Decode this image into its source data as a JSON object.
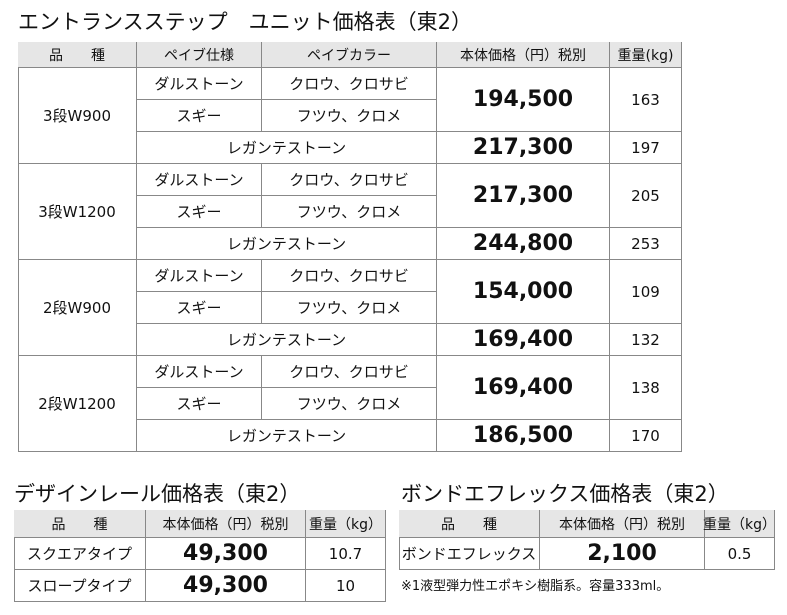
{
  "main": {
    "title": "エントランスステップ　ユニット価格表（東2）",
    "headers": [
      "品　　種",
      "ペイブ仕様",
      "ペイブカラー",
      "本体価格（円）税別",
      "重量(kg)"
    ],
    "groups": [
      {
        "name": "3段W900",
        "rows": [
          {
            "spec": "ダルストーン",
            "color": "クロウ、クロサビ"
          },
          {
            "spec": "スギー",
            "color": "フツウ、クロメ"
          }
        ],
        "price": "194,500",
        "weight": 163,
        "legante": {
          "spec": "レガンテストーン",
          "price": "217,300",
          "weight": 197
        }
      },
      {
        "name": "3段W1200",
        "rows": [
          {
            "spec": "ダルストーン",
            "color": "クロウ、クロサビ"
          },
          {
            "spec": "スギー",
            "color": "フツウ、クロメ"
          }
        ],
        "price": "217,300",
        "weight": 205,
        "legante": {
          "spec": "レガンテストーン",
          "price": "244,800",
          "weight": 253
        }
      },
      {
        "name": "2段W900",
        "rows": [
          {
            "spec": "ダルストーン",
            "color": "クロウ、クロサビ"
          },
          {
            "spec": "スギー",
            "color": "フツウ、クロメ"
          }
        ],
        "price": "154,000",
        "weight": 109,
        "legante": {
          "spec": "レガンテストーン",
          "price": "169,400",
          "weight": 132
        }
      },
      {
        "name": "2段W1200",
        "rows": [
          {
            "spec": "ダルストーン",
            "color": "クロウ、クロサビ"
          },
          {
            "spec": "スギー",
            "color": "フツウ、クロメ"
          }
        ],
        "price": "169,400",
        "weight": 138,
        "legante": {
          "spec": "レガンテストーン",
          "price": "186,500",
          "weight": 170
        }
      }
    ]
  },
  "rail": {
    "title": "デザインレール価格表（東2）",
    "headers": [
      "品　　種",
      "本体価格（円）税別",
      "重量（kg）"
    ],
    "rows": [
      [
        "スクエアタイプ",
        "49,300",
        10.7
      ],
      [
        "スロープタイプ",
        "49,300",
        10
      ]
    ]
  },
  "bond": {
    "title": "ボンドエフレックス価格表（東2）",
    "headers": [
      "品　　種",
      "本体価格（円）税別",
      "重量（kg）"
    ],
    "rows": [
      [
        "ボンドエフレックス",
        "2,100",
        0.5
      ]
    ],
    "note": "※1液型弾力性エポキシ樹脂系。容量333ml。"
  }
}
